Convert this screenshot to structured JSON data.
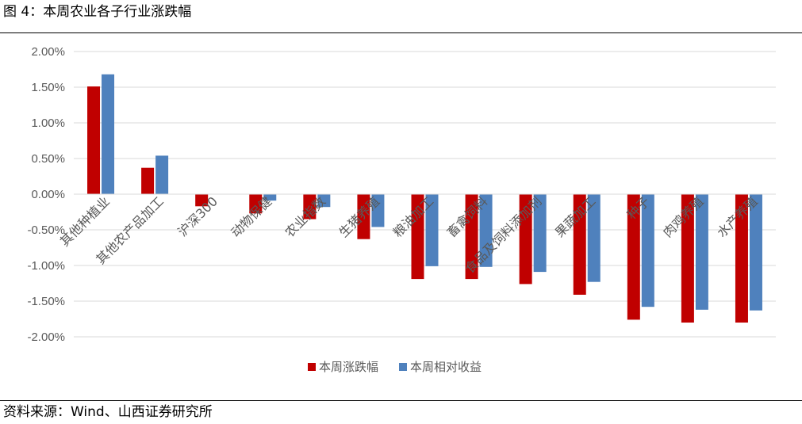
{
  "figure": {
    "title": "图 4：本周农业各子行业涨跌幅",
    "source": "资料来源：Wind、山西证券研究所"
  },
  "colors": {
    "series_1": "#C00000",
    "series_2": "#4F81BD",
    "gridline": "#D9D9D9",
    "text": "#595959"
  },
  "chart_data": {
    "type": "bar",
    "categories": [
      "其他种植业",
      "其他农产品加工",
      "沪深300",
      "动物保健",
      "农业指数",
      "生猪养殖",
      "粮油加工",
      "畜禽饲料",
      "食品及饲料添加剂",
      "果蔬加工",
      "种子",
      "肉鸡养殖",
      "水产养殖"
    ],
    "series": [
      {
        "name": "本周涨跌幅",
        "values": [
          1.51,
          0.37,
          -0.17,
          -0.27,
          -0.35,
          -0.63,
          -1.19,
          -1.19,
          -1.26,
          -1.41,
          -1.76,
          -1.8,
          -1.8
        ]
      },
      {
        "name": "本周相对收益",
        "values": [
          1.68,
          0.54,
          0.0,
          -0.09,
          -0.18,
          -0.46,
          -1.01,
          -1.02,
          -1.09,
          -1.23,
          -1.58,
          -1.62,
          -1.63
        ]
      }
    ],
    "yticks": [
      "2.00%",
      "1.50%",
      "1.00%",
      "0.50%",
      "0.00%",
      "-0.50%",
      "-1.00%",
      "-1.50%",
      "-2.00%"
    ],
    "ylim": [
      -2.0,
      2.0
    ],
    "grid": true,
    "legend_position": "bottom"
  }
}
